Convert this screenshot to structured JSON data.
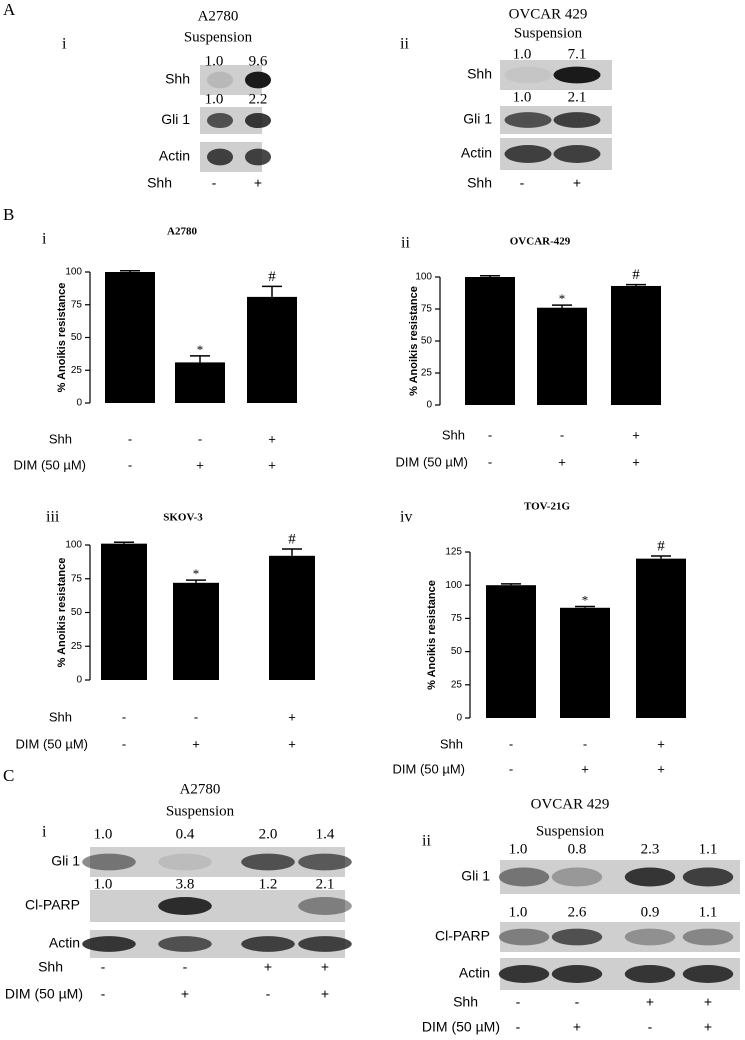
{
  "panel_a": {
    "label": "A",
    "blots": [
      {
        "numeral": "i",
        "cell_line": "A2780",
        "condition": "Suspension",
        "rows": [
          {
            "label": "Shh",
            "quantification": [
              "1.0",
              "9.6"
            ]
          },
          {
            "label": "Gli 1",
            "quantification": [
              "1.0",
              "2.2"
            ]
          },
          {
            "label": "Actin"
          }
        ],
        "treatments": [
          {
            "label": "Shh",
            "lanes": [
              "-",
              "+"
            ]
          }
        ]
      },
      {
        "numeral": "ii",
        "cell_line": "OVCAR 429",
        "condition": "Suspension",
        "rows": [
          {
            "label": "Shh",
            "quantification": [
              "1.0",
              "7.1"
            ]
          },
          {
            "label": "Gli 1",
            "quantification": [
              "1.0",
              "2.1"
            ]
          },
          {
            "label": "Actin"
          }
        ],
        "treatments": [
          {
            "label": "Shh",
            "lanes": [
              "-",
              "+"
            ]
          }
        ]
      }
    ]
  },
  "panel_b": {
    "label": "B"
  },
  "chart_data": [
    {
      "type": "bar",
      "numeral": "i",
      "title": "A2780",
      "y_label": "% Anoikis resistance",
      "color": "#000000",
      "values": [
        100,
        31,
        81
      ],
      "errors": [
        1,
        5,
        8
      ],
      "annotations": [
        null,
        "*",
        "#"
      ],
      "ylim": [
        0,
        100
      ],
      "yticks": [
        0,
        25,
        50,
        75,
        100
      ],
      "treatments": [
        {
          "label": "Shh",
          "lanes": [
            "-",
            "-",
            "+"
          ]
        },
        {
          "label": "DIM (50 µM)",
          "lanes": [
            "-",
            "+",
            "+"
          ]
        }
      ]
    },
    {
      "type": "bar",
      "numeral": "ii",
      "title": "OVCAR-429",
      "y_label": "% Anoikis resistance",
      "color": "#000000",
      "values": [
        100,
        76,
        93
      ],
      "errors": [
        1,
        2,
        1
      ],
      "annotations": [
        null,
        "*",
        "#"
      ],
      "ylim": [
        0,
        100
      ],
      "yticks": [
        0,
        25,
        50,
        75,
        100
      ],
      "treatments": [
        {
          "label": "Shh",
          "lanes": [
            "-",
            "-",
            "+"
          ]
        },
        {
          "label": "DIM (50 µM)",
          "lanes": [
            "-",
            "+",
            "+"
          ]
        }
      ]
    },
    {
      "type": "bar",
      "numeral": "iii",
      "title": "SKOV-3",
      "y_label": "% Anoikis resistance",
      "color": "#000000",
      "values": [
        101,
        72,
        92
      ],
      "errors": [
        1,
        2,
        5
      ],
      "annotations": [
        null,
        "*",
        "#"
      ],
      "ylim": [
        0,
        100
      ],
      "yticks": [
        0,
        25,
        50,
        75,
        100
      ],
      "treatments": [
        {
          "label": "Shh",
          "lanes": [
            "-",
            "-",
            "+"
          ]
        },
        {
          "label": "DIM (50 µM)",
          "lanes": [
            "-",
            "+",
            "+"
          ]
        }
      ]
    },
    {
      "type": "bar",
      "numeral": "iv",
      "title": "TOV-21G",
      "y_label": "% Anoikis resistance",
      "color": "#000000",
      "values": [
        100,
        83,
        120
      ],
      "errors": [
        1,
        1,
        2
      ],
      "annotations": [
        null,
        "*",
        "#"
      ],
      "ylim": [
        0,
        125
      ],
      "yticks": [
        0,
        25,
        50,
        75,
        100,
        125
      ],
      "treatments": [
        {
          "label": "Shh",
          "lanes": [
            "-",
            "-",
            "+"
          ]
        },
        {
          "label": "DIM (50 µM)",
          "lanes": [
            "-",
            "+",
            "+"
          ]
        }
      ]
    }
  ],
  "panel_c": {
    "label": "C",
    "blots": [
      {
        "numeral": "i",
        "cell_line": "A2780",
        "condition": "Suspension",
        "rows": [
          {
            "label": "Gli 1",
            "quantification": [
              "1.0",
              "0.4",
              "2.0",
              "1.4"
            ]
          },
          {
            "label": "Cl-PARP",
            "quantification": [
              "1.0",
              "3.8",
              "1.2",
              "2.1"
            ]
          },
          {
            "label": "Actin"
          }
        ],
        "treatments": [
          {
            "label": "Shh",
            "lanes": [
              "-",
              "-",
              "+",
              "+"
            ]
          },
          {
            "label": "DIM (50 µM)",
            "lanes": [
              "-",
              "+",
              "-",
              "+"
            ]
          }
        ]
      },
      {
        "numeral": "ii",
        "cell_line": "OVCAR 429",
        "condition": "Suspension",
        "rows": [
          {
            "label": "Gli 1",
            "quantification": [
              "1.0",
              "0.8",
              "2.3",
              "1.1"
            ]
          },
          {
            "label": "Cl-PARP",
            "quantification": [
              "1.0",
              "2.6",
              "0.9",
              "1.1"
            ]
          },
          {
            "label": "Actin"
          }
        ],
        "treatments": [
          {
            "label": "Shh",
            "lanes": [
              "-",
              "-",
              "+",
              "+"
            ]
          },
          {
            "label": "DIM (50 µM)",
            "lanes": [
              "-",
              "+",
              "-",
              "+"
            ]
          }
        ]
      }
    ]
  }
}
